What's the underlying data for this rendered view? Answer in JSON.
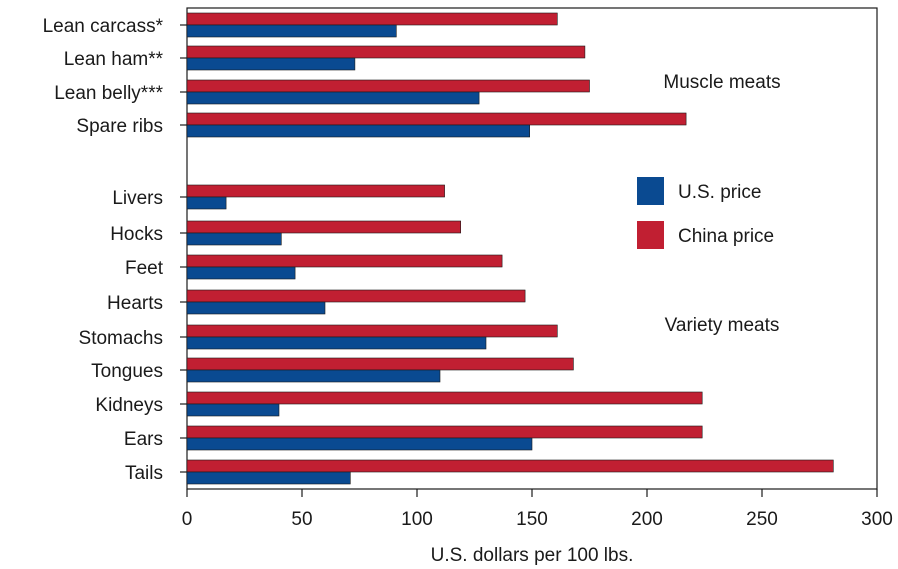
{
  "chart_data": {
    "type": "bar",
    "orientation": "horizontal",
    "xlabel": "U.S. dollars per 100 lbs.",
    "xlim": [
      0,
      300
    ],
    "xticks": [
      0,
      50,
      100,
      150,
      200,
      250,
      300
    ],
    "groups": [
      {
        "name": "Muscle meats",
        "categories": [
          "Lean carcass*",
          "Lean ham**",
          "Lean belly***",
          "Spare ribs"
        ]
      },
      {
        "name": "Variety meats",
        "categories": [
          "Livers",
          "Hocks",
          "Feet",
          "Hearts",
          "Stomachs",
          "Tongues",
          "Kidneys",
          "Ears",
          "Tails"
        ]
      }
    ],
    "categories": [
      "Lean carcass*",
      "Lean ham**",
      "Lean belly***",
      "Spare ribs",
      "Livers",
      "Hocks",
      "Feet",
      "Hearts",
      "Stomachs",
      "Tongues",
      "Kidneys",
      "Ears",
      "Tails"
    ],
    "series": [
      {
        "name": "U.S. price",
        "color": "#0a4a91",
        "values": [
          91,
          73,
          127,
          149,
          17,
          41,
          47,
          60,
          130,
          110,
          40,
          150,
          71
        ]
      },
      {
        "name": "China price",
        "color": "#c11f32",
        "values": [
          161,
          173,
          175,
          217,
          112,
          119,
          137,
          147,
          161,
          168,
          224,
          224,
          281
        ]
      }
    ],
    "legend_position": "right",
    "grid": false
  }
}
